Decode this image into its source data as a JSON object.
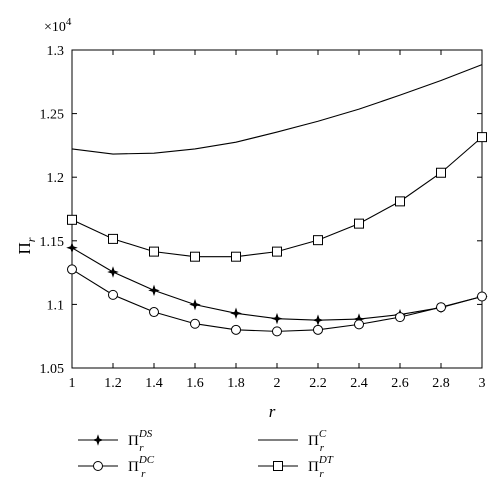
{
  "chart_data": {
    "type": "line",
    "title": "",
    "xlabel": "r",
    "ylabel": "Π",
    "ylabel_sub": "r",
    "y_multiplier_base": "×10",
    "y_multiplier_exp": "4",
    "xlim": [
      1,
      3
    ],
    "ylim": [
      1.05,
      1.3
    ],
    "x_ticks": [
      "1",
      "1.2",
      "1.4",
      "1.6",
      "1.8",
      "2",
      "2.2",
      "2.4",
      "2.6",
      "2.8",
      "3"
    ],
    "y_ticks": [
      "1.05",
      "1.1",
      "1.15",
      "1.2",
      "1.25",
      "1.3"
    ],
    "grid": false,
    "legend_position": "bottom",
    "x": [
      1.0,
      1.2,
      1.4,
      1.6,
      1.8,
      2.0,
      2.2,
      2.4,
      2.6,
      2.8,
      3.0
    ],
    "series": [
      {
        "symbol": "Π",
        "sub": "r",
        "sup": "C",
        "marker": "none",
        "color": "#000000",
        "values": [
          1.2222,
          1.2182,
          1.2189,
          1.2222,
          1.2275,
          1.2355,
          1.244,
          1.2535,
          1.2645,
          1.276,
          1.2885
        ]
      },
      {
        "symbol": "Π",
        "sub": "r",
        "sup": "DT",
        "marker": "square",
        "color": "#000000",
        "values": [
          1.1665,
          1.1515,
          1.1415,
          1.1375,
          1.1375,
          1.1415,
          1.1505,
          1.1635,
          1.181,
          1.2035,
          1.2315
        ]
      },
      {
        "symbol": "Π",
        "sub": "r",
        "sup": "DS",
        "marker": "star",
        "color": "#000000",
        "values": [
          1.1445,
          1.1255,
          1.111,
          1.0998,
          1.093,
          1.0888,
          1.0876,
          1.0885,
          1.092,
          1.0975,
          1.1062
        ]
      },
      {
        "symbol": "Π",
        "sub": "r",
        "sup": "DC",
        "marker": "circle",
        "color": "#000000",
        "values": [
          1.1275,
          1.1075,
          1.094,
          1.0848,
          1.08,
          1.0788,
          1.08,
          1.0843,
          1.09,
          1.0978,
          1.1062
        ]
      }
    ],
    "legend_order": [
      2,
      0,
      3,
      1
    ]
  }
}
